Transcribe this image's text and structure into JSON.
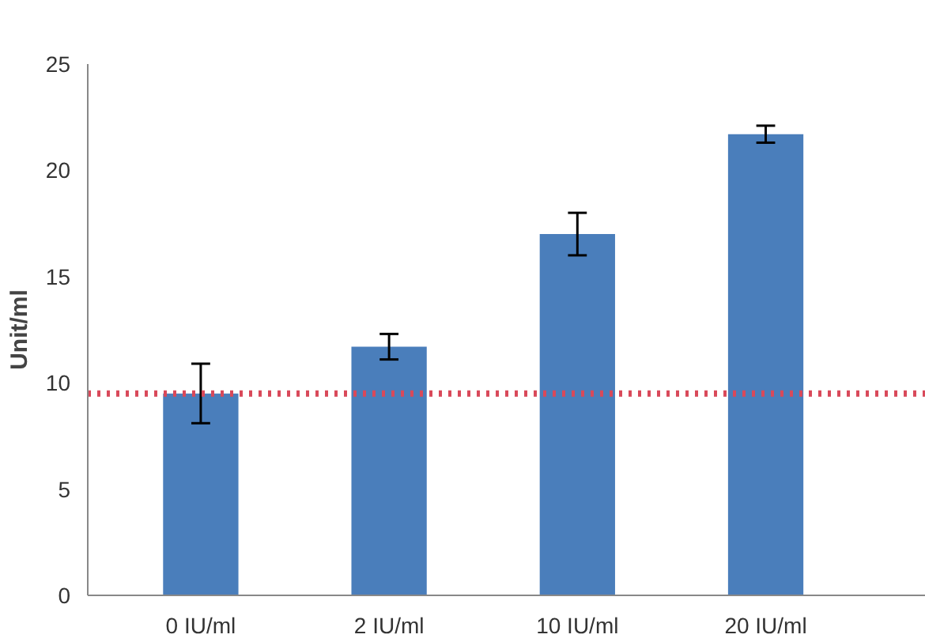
{
  "chart_data": {
    "type": "bar",
    "ylabel": "Unit/ml",
    "categories": [
      "0 IU/ml",
      "2 IU/ml",
      "10 IU/ml",
      "20 IU/ml"
    ],
    "values": [
      9.5,
      11.7,
      17.0,
      21.7
    ],
    "errors": [
      1.4,
      0.6,
      1.0,
      0.4
    ],
    "color": "#4a7ebb",
    "ylim": [
      0,
      25
    ],
    "yticks": [
      0,
      5,
      10,
      15,
      20,
      25
    ],
    "grid": false,
    "ref_lines": [
      {
        "axis": "y",
        "value": 9.5,
        "color": "#d9495a",
        "line_style": "dotted"
      }
    ]
  }
}
